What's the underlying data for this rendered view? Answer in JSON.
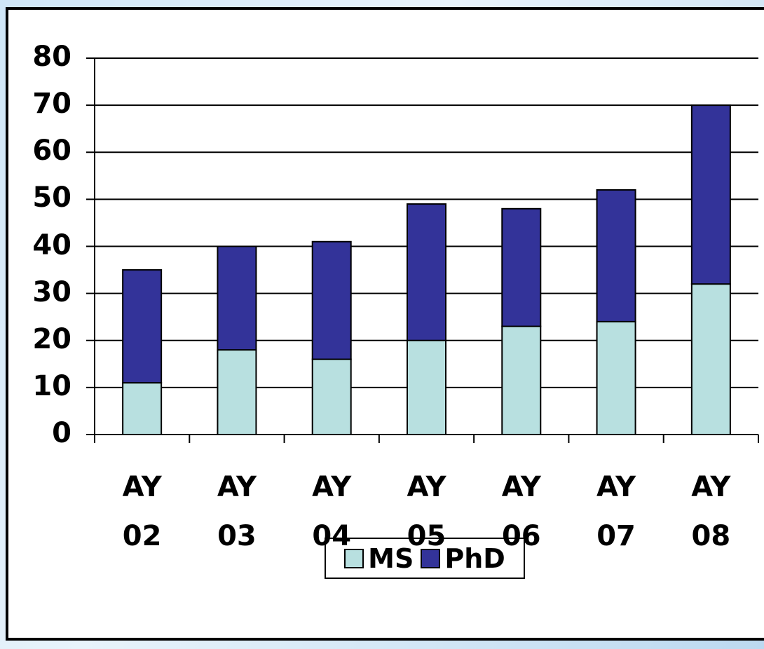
{
  "chart_data": {
    "type": "stacked_bar",
    "categories": [
      "AY 02",
      "AY 03",
      "AY 04",
      "AY 05",
      "AY 06",
      "AY 07",
      "AY 08"
    ],
    "series": [
      {
        "name": "MS",
        "color": "#b8e0e0",
        "values": [
          11,
          18,
          16,
          20,
          23,
          24,
          32
        ]
      },
      {
        "name": "PhD",
        "color": "#333399",
        "values": [
          24,
          22,
          25,
          29,
          25,
          28,
          38
        ]
      }
    ],
    "ylim": [
      0,
      80
    ],
    "yticks": [
      0,
      10,
      20,
      30,
      40,
      50,
      60,
      70,
      80
    ],
    "grid": true,
    "legend": "bottom"
  }
}
